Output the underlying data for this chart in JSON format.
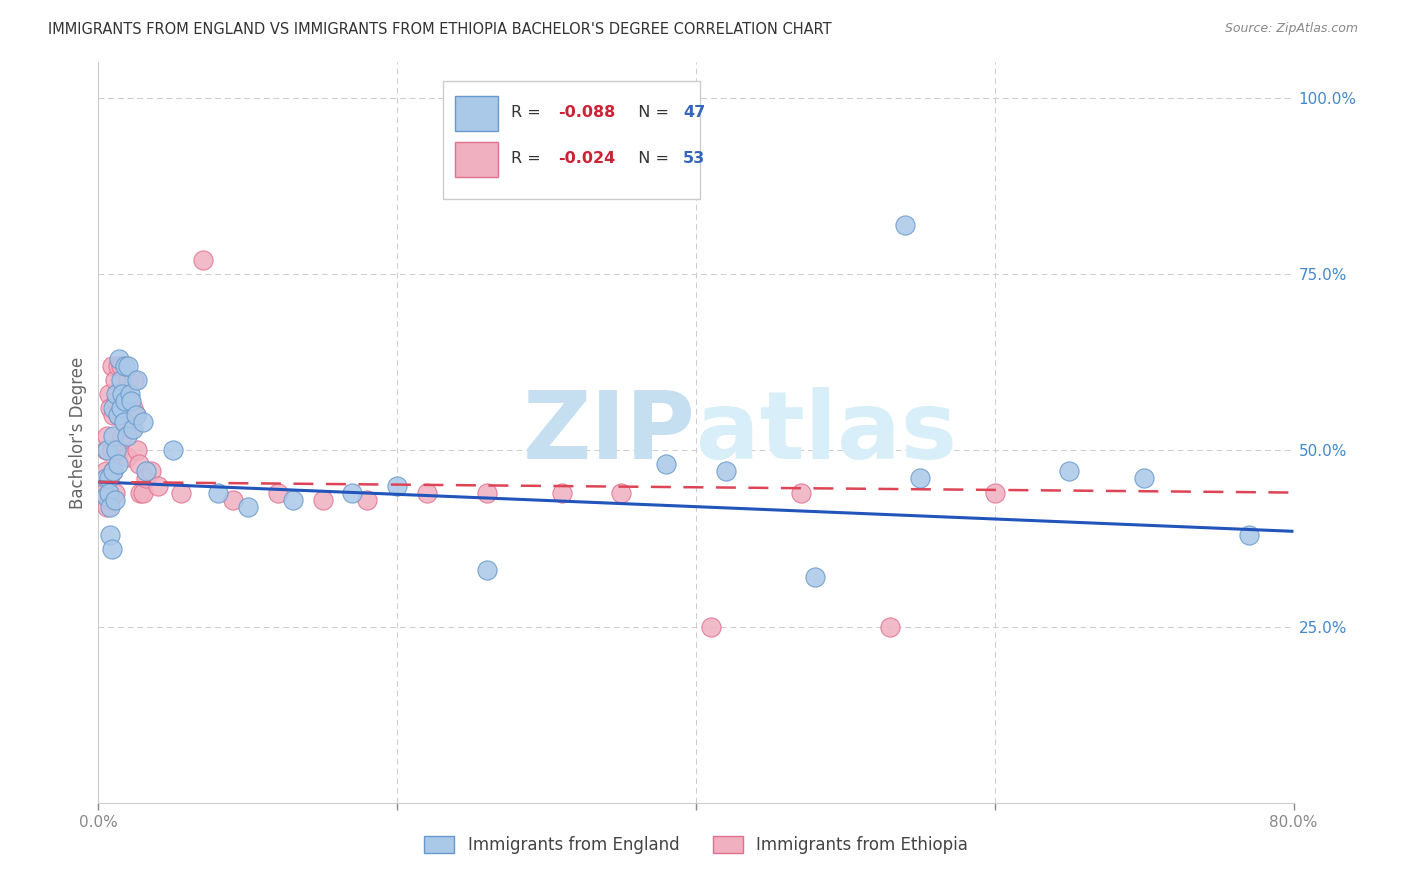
{
  "title": "IMMIGRANTS FROM ENGLAND VS IMMIGRANTS FROM ETHIOPIA BACHELOR'S DEGREE CORRELATION CHART",
  "source": "Source: ZipAtlas.com",
  "ylabel": "Bachelor's Degree",
  "xlim": [
    0.0,
    0.8
  ],
  "ylim": [
    0.0,
    1.05
  ],
  "ytick_positions": [
    0.25,
    0.5,
    0.75,
    1.0
  ],
  "ytick_labels": [
    "25.0%",
    "50.0%",
    "75.0%",
    "100.0%"
  ],
  "xtick_positions": [
    0.0,
    0.2,
    0.4,
    0.6,
    0.8
  ],
  "xtick_labels": [
    "0.0%",
    "",
    "",
    "",
    "80.0%"
  ],
  "england_scatter_color": "#aac8e8",
  "england_edge_color": "#6699cc",
  "ethiopia_scatter_color": "#f0b0c0",
  "ethiopia_edge_color": "#e07090",
  "trend_england_color": "#2255bb",
  "trend_ethiopia_color": "#dd4455",
  "england_R": -0.088,
  "england_N": 47,
  "ethiopia_R": -0.024,
  "ethiopia_N": 53,
  "legend_r_color": "#cc2233",
  "legend_n_color": "#3366bb",
  "watermark_zip_color": "#cce4f0",
  "watermark_atlas_color": "#d8eef8",
  "background_color": "#ffffff",
  "grid_color": "#cccccc",
  "title_color": "#333333",
  "source_color": "#888888",
  "right_axis_color": "#4488cc",
  "england_x": [
    0.005,
    0.005,
    0.006,
    0.007,
    0.007,
    0.008,
    0.008,
    0.009,
    0.01,
    0.01,
    0.01,
    0.011,
    0.012,
    0.012,
    0.013,
    0.013,
    0.014,
    0.015,
    0.015,
    0.016,
    0.017,
    0.018,
    0.018,
    0.019,
    0.02,
    0.021,
    0.022,
    0.023,
    0.025,
    0.026,
    0.03,
    0.032,
    0.05,
    0.08,
    0.1,
    0.13,
    0.17,
    0.2,
    0.26,
    0.38,
    0.48,
    0.55,
    0.65,
    0.7,
    0.77,
    0.54,
    0.42
  ],
  "england_y": [
    0.435,
    0.46,
    0.5,
    0.46,
    0.44,
    0.42,
    0.38,
    0.36,
    0.56,
    0.52,
    0.47,
    0.43,
    0.58,
    0.5,
    0.55,
    0.48,
    0.63,
    0.6,
    0.56,
    0.58,
    0.54,
    0.62,
    0.57,
    0.52,
    0.62,
    0.58,
    0.57,
    0.53,
    0.55,
    0.6,
    0.54,
    0.47,
    0.5,
    0.44,
    0.42,
    0.43,
    0.44,
    0.45,
    0.33,
    0.48,
    0.32,
    0.46,
    0.47,
    0.46,
    0.38,
    0.82,
    0.47
  ],
  "ethiopia_x": [
    0.003,
    0.004,
    0.005,
    0.005,
    0.006,
    0.006,
    0.007,
    0.007,
    0.008,
    0.008,
    0.009,
    0.009,
    0.01,
    0.01,
    0.011,
    0.011,
    0.012,
    0.013,
    0.013,
    0.014,
    0.015,
    0.015,
    0.016,
    0.017,
    0.018,
    0.019,
    0.02,
    0.021,
    0.022,
    0.023,
    0.024,
    0.025,
    0.026,
    0.027,
    0.028,
    0.03,
    0.032,
    0.035,
    0.04,
    0.055,
    0.07,
    0.09,
    0.12,
    0.15,
    0.18,
    0.22,
    0.26,
    0.31,
    0.35,
    0.41,
    0.47,
    0.53,
    0.6
  ],
  "ethiopia_y": [
    0.455,
    0.44,
    0.5,
    0.47,
    0.52,
    0.42,
    0.58,
    0.46,
    0.56,
    0.43,
    0.62,
    0.5,
    0.55,
    0.47,
    0.6,
    0.44,
    0.57,
    0.62,
    0.55,
    0.5,
    0.62,
    0.56,
    0.52,
    0.58,
    0.54,
    0.49,
    0.6,
    0.57,
    0.53,
    0.56,
    0.6,
    0.55,
    0.5,
    0.48,
    0.44,
    0.44,
    0.46,
    0.47,
    0.45,
    0.44,
    0.77,
    0.43,
    0.44,
    0.43,
    0.43,
    0.44,
    0.44,
    0.44,
    0.44,
    0.25,
    0.44,
    0.25,
    0.44
  ]
}
